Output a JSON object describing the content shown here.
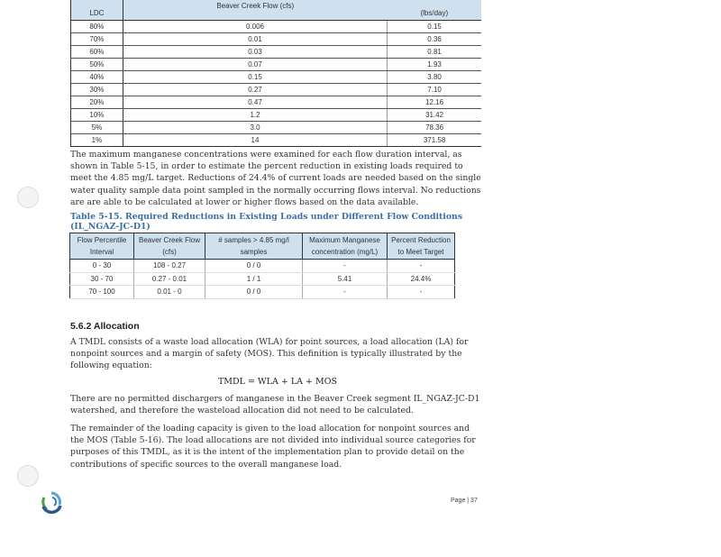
{
  "table1": {
    "headers": [
      "LDC",
      "Beaver Creek Flow (cfs)",
      "(lbs/day)"
    ],
    "rows": [
      [
        "80%",
        "0.006",
        "0.15"
      ],
      [
        "70%",
        "0.01",
        "0.36"
      ],
      [
        "60%",
        "0.03",
        "0.81"
      ],
      [
        "50%",
        "0.07",
        "1.93"
      ],
      [
        "40%",
        "0.15",
        "3.80"
      ],
      [
        "30%",
        "0.27",
        "7.10"
      ],
      [
        "20%",
        "0.47",
        "12.16"
      ],
      [
        "10%",
        "1.2",
        "31.42"
      ],
      [
        "5%",
        "3.0",
        "78.36"
      ],
      [
        "1%",
        "14",
        "371.58"
      ]
    ]
  },
  "paragraph1": "The maximum manganese concentrations were examined for each flow duration interval, as shown in Table 5-15, in order to estimate the percent reduction in existing loads required to meet the 4.85 mg/L target. Reductions of 24.4% of current loads are needed based on the single water quality sample data point sampled in the normally occurring flows interval. No reductions are are able to be calculated at lower or higher flows based on the data available.",
  "table2": {
    "caption": "Table 5-15. Required Reductions in Existing Loads under Different Flow Conditions (IL_NGAZ-JC-D1)",
    "headers": [
      "Flow Percentile Interval",
      "Beaver Creek Flow (cfs)",
      "# samples > 4.85 mg/l samples",
      "Maximum Manganese concentration (mg/L)",
      "Percent Reduction to Meet Target"
    ],
    "rows": [
      [
        "0 - 30",
        "108 - 0.27",
        "0 / 0",
        "-",
        "-"
      ],
      [
        "30 - 70",
        "0.27 - 0.01",
        "1 / 1",
        "5.41",
        "24.4%"
      ],
      [
        "70 - 100",
        "0.01 - 0",
        "0 / 0",
        "-",
        "-"
      ]
    ]
  },
  "section_heading": "5.6.2 Allocation",
  "paragraph2": "A TMDL consists of a waste load allocation (WLA) for point sources, a load allocation (LA) for nonpoint sources and a margin of safety (MOS). This definition is typically illustrated by the following equation:",
  "equation": "TMDL = WLA + LA + MOS",
  "paragraph3": "There are no permitted dischargers of manganese in the Beaver Creek segment IL_NGAZ-JC-D1 watershed, and therefore the wasteload allocation did not need to be calculated.",
  "paragraph4": "The remainder of the loading capacity is given to the load allocation for nonpoint sources and the MOS (Table 5-16). The load allocations are not divided into individual source categories for purposes of this TMDL, as it is the intent of the implementation plan to provide detail on the contributions of specific sources to the overall manganese load.",
  "footer": {
    "page_label": "Page | 37",
    "logo_icon": "agency-swirl-logo"
  },
  "colors": {
    "table_header_bg": "#cfe0ee",
    "caption": "#3a6fa6"
  }
}
